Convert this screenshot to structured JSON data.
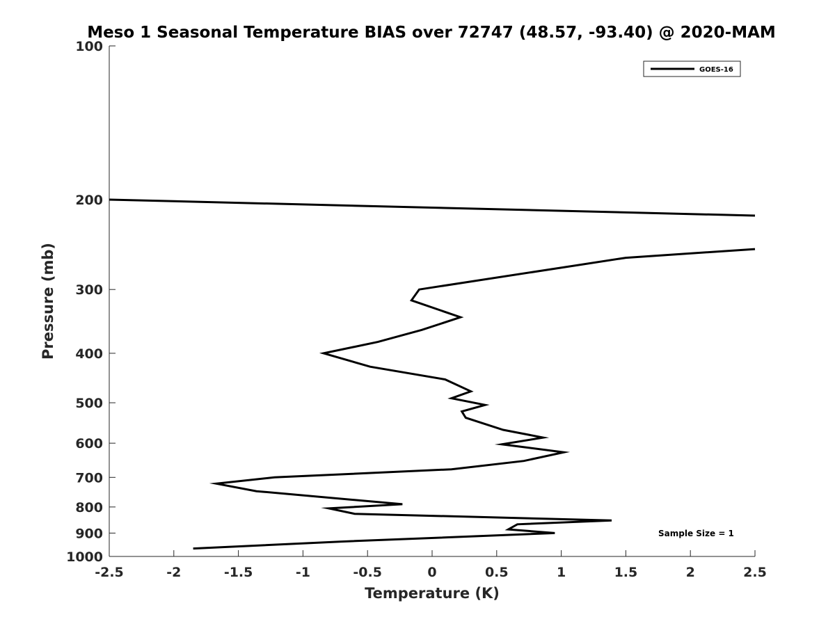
{
  "chart_data": {
    "type": "line",
    "title": "Meso 1 Seasonal Temperature BIAS over 72747 (48.57, -93.40) @ 2020-MAM",
    "xlabel": "Temperature (K)",
    "ylabel": "Pressure (mb)",
    "xlim": [
      -2.5,
      2.5
    ],
    "ylim": [
      100,
      1000
    ],
    "y_scale": "log",
    "y_reversed": true,
    "x_ticks": [
      -2.5,
      -2,
      -1.5,
      -1,
      -0.5,
      0,
      0.5,
      1,
      1.5,
      2,
      2.5
    ],
    "x_tick_labels": [
      "-2.5",
      "-2",
      "-1.5",
      "-1",
      "-0.5",
      "0",
      "0.5",
      "1",
      "1.5",
      "2",
      "2.5"
    ],
    "y_ticks": [
      100,
      200,
      300,
      400,
      500,
      600,
      700,
      800,
      900,
      1000
    ],
    "y_tick_labels": [
      "100",
      "200",
      "300",
      "400",
      "500",
      "600",
      "700",
      "800",
      "900",
      "1000"
    ],
    "grid": false,
    "legend_position": "top-right",
    "annotation": "Sample Size = 1",
    "series": [
      {
        "name": "GOES-16",
        "color": "#000000",
        "segments": [
          [
            {
              "t": -2.5,
              "p": 200
            },
            {
              "t": 2.5,
              "p": 215
            }
          ],
          [
            {
              "t": 2.5,
              "p": 250
            },
            {
              "t": 1.5,
              "p": 260
            },
            {
              "t": -0.1,
              "p": 300
            },
            {
              "t": -0.16,
              "p": 315
            },
            {
              "t": 0.22,
              "p": 340
            },
            {
              "t": -0.08,
              "p": 360
            },
            {
              "t": -0.42,
              "p": 380
            },
            {
              "t": -0.84,
              "p": 400
            },
            {
              "t": -0.48,
              "p": 425
            },
            {
              "t": 0.1,
              "p": 450
            },
            {
              "t": 0.3,
              "p": 475
            },
            {
              "t": 0.15,
              "p": 490
            },
            {
              "t": 0.41,
              "p": 505
            },
            {
              "t": 0.23,
              "p": 520
            },
            {
              "t": 0.26,
              "p": 535
            },
            {
              "t": 0.55,
              "p": 565
            },
            {
              "t": 0.86,
              "p": 585
            },
            {
              "t": 0.54,
              "p": 603
            },
            {
              "t": 1.02,
              "p": 625
            },
            {
              "t": 0.71,
              "p": 650
            },
            {
              "t": 0.15,
              "p": 675
            },
            {
              "t": -1.22,
              "p": 700
            },
            {
              "t": -1.67,
              "p": 720
            },
            {
              "t": -1.36,
              "p": 745
            },
            {
              "t": -0.23,
              "p": 790
            },
            {
              "t": -0.8,
              "p": 805
            },
            {
              "t": -0.6,
              "p": 825
            },
            {
              "t": 1.39,
              "p": 850
            },
            {
              "t": 0.66,
              "p": 865
            },
            {
              "t": 0.59,
              "p": 885
            },
            {
              "t": 0.95,
              "p": 900
            },
            {
              "t": -0.7,
              "p": 935
            },
            {
              "t": -1.85,
              "p": 965
            }
          ]
        ]
      }
    ]
  }
}
